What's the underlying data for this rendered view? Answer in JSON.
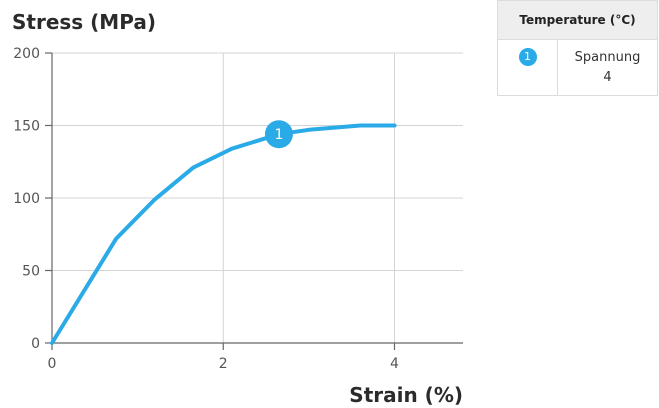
{
  "chart_data": {
    "type": "line",
    "xlabel": "Strain (%)",
    "ylabel": "Stress (MPa)",
    "xlim": [
      0,
      4.8
    ],
    "ylim": [
      0,
      200
    ],
    "x_ticks": [
      0,
      2,
      4
    ],
    "y_ticks": [
      0,
      50,
      100,
      150,
      200
    ],
    "grid": true,
    "series": [
      {
        "name": "Spannung",
        "color": "#2aaae6",
        "x": [
          0,
          0.75,
          1.2,
          1.65,
          2.1,
          2.65,
          3.0,
          3.6,
          4.0
        ],
        "y": [
          0,
          72,
          99,
          121,
          134,
          144,
          147,
          150,
          150
        ]
      }
    ],
    "annotations": [
      {
        "label": "1",
        "x": 2.65,
        "y": 144
      }
    ],
    "legend": {
      "title": "Temperature (°C)",
      "placement": "top-right",
      "entries": [
        {
          "badge": "1",
          "name": "Spannung",
          "value": "4"
        }
      ]
    }
  }
}
